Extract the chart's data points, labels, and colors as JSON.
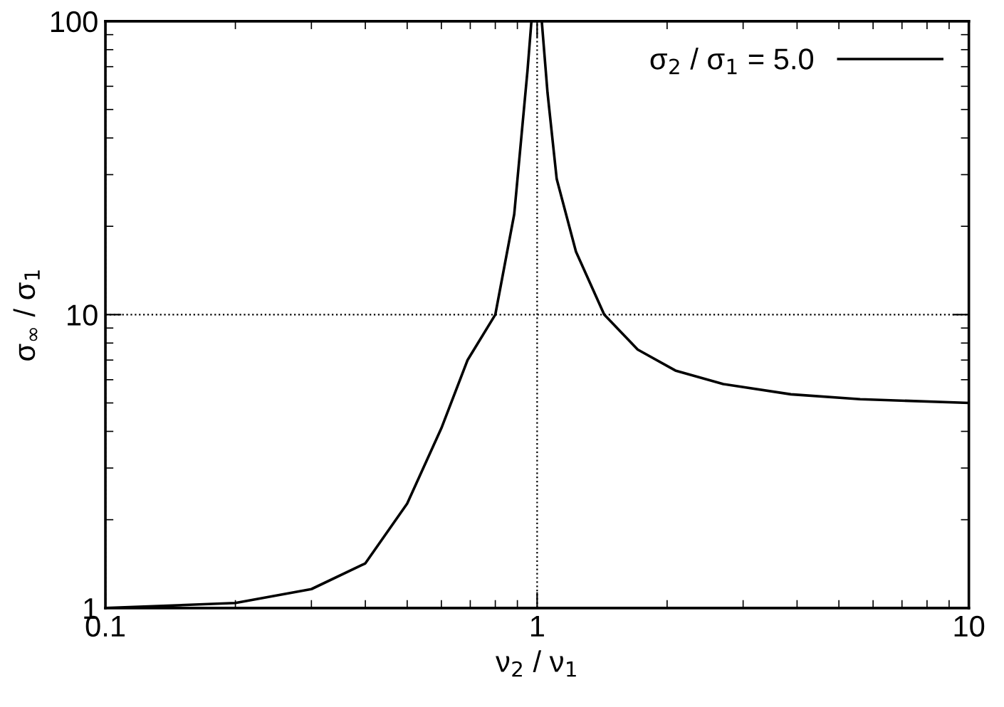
{
  "chart_data": {
    "type": "line",
    "xlabel": "ν$_{2}$ / ν$_{1}$",
    "ylabel": "σ$_{∞}$ / σ$_{1}$",
    "log": "xy",
    "xlim": [
      0.1,
      10
    ],
    "ylim": [
      1,
      100
    ],
    "xticks": [
      0.1,
      1,
      10
    ],
    "yticks": [
      1,
      10,
      100
    ],
    "grid": true,
    "legend": "top right",
    "line_style": "solid",
    "marker": "none",
    "series": [
      {
        "name": "σ$_{2}$ / σ$_{1}$ = 5.0",
        "color": "#000000",
        "x": [
          0.1,
          0.2,
          0.3,
          0.4,
          0.5,
          0.6,
          0.69,
          0.8,
          0.885,
          0.95,
          0.97,
          1.0,
          1.025,
          1.057,
          1.11,
          1.23,
          1.43,
          1.71,
          2.09,
          2.7,
          3.87,
          5.6,
          10
        ],
        "values": [
          1.0,
          1.04,
          1.16,
          1.42,
          2.27,
          4.1,
          7.0,
          10,
          22,
          68,
          100,
          null,
          100,
          57,
          29,
          16.4,
          10,
          7.6,
          6.45,
          5.8,
          5.35,
          5.15,
          5.0
        ]
      }
    ]
  }
}
